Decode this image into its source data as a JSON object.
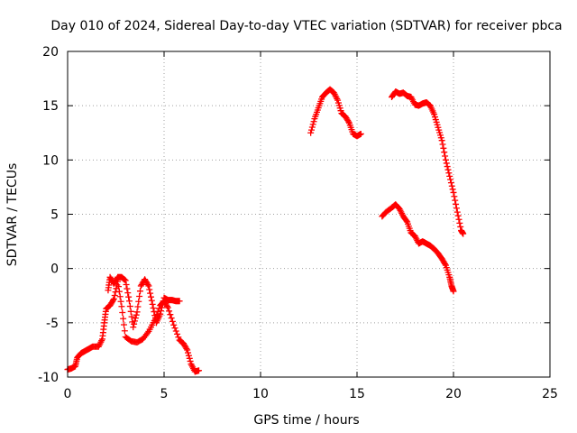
{
  "chart_data": {
    "type": "scatter",
    "title": "Day 010 of 2024, Sidereal Day-to-day VTEC variation (SDTVAR) for receiver pbca",
    "xlabel": "GPS time / hours",
    "ylabel": "SDTVAR / TECUs",
    "xlim": [
      0,
      25
    ],
    "ylim": [
      -10,
      20
    ],
    "xticks": [
      0,
      5,
      10,
      15,
      20,
      25
    ],
    "yticks": [
      -10,
      -5,
      0,
      5,
      10,
      15,
      20
    ],
    "grid": true,
    "marker": "+",
    "color": "#ff0000",
    "series": [
      {
        "name": "segment-1",
        "x": [
          0.0,
          0.2,
          0.4,
          0.5,
          0.7,
          0.9,
          1.1,
          1.3,
          1.6,
          1.8,
          1.9,
          2.0,
          2.2,
          2.4,
          2.6,
          2.8,
          3.0,
          3.3,
          3.6,
          3.9,
          4.2,
          4.5,
          4.8,
          5.0,
          5.2,
          5.5,
          5.8,
          6.0,
          6.2,
          6.4,
          6.6,
          6.8
        ],
        "y": [
          -9.3,
          -9.2,
          -9.0,
          -8.2,
          -7.8,
          -7.6,
          -7.4,
          -7.2,
          -7.2,
          -6.5,
          -5.0,
          -3.7,
          -3.4,
          -2.8,
          -1.2,
          -3.5,
          -6.3,
          -6.7,
          -6.8,
          -6.5,
          -5.8,
          -4.8,
          -3.4,
          -3.0,
          -3.6,
          -5.2,
          -6.6,
          -6.9,
          -7.5,
          -8.8,
          -9.5,
          -9.4
        ]
      },
      {
        "name": "segment-2",
        "x": [
          2.1,
          2.2,
          2.4,
          2.6,
          2.8,
          3.0,
          3.2,
          3.4,
          3.6,
          3.8,
          4.0,
          4.2,
          4.4,
          4.6,
          4.8,
          5.0,
          5.2,
          5.4,
          5.6,
          5.8
        ],
        "y": [
          -2.0,
          -0.8,
          -1.4,
          -0.8,
          -0.8,
          -1.1,
          -3.0,
          -5.4,
          -4.0,
          -1.6,
          -1.0,
          -1.6,
          -3.3,
          -5.0,
          -4.2,
          -2.7,
          -2.9,
          -2.9,
          -3.0,
          -3.0
        ]
      },
      {
        "name": "segment-3",
        "x": [
          12.6,
          12.8,
          13.0,
          13.2,
          13.4,
          13.6,
          13.8,
          14.0,
          14.2,
          14.4,
          14.6,
          14.8,
          15.0,
          15.2
        ],
        "y": [
          12.5,
          13.8,
          14.8,
          15.8,
          16.2,
          16.5,
          16.2,
          15.5,
          14.3,
          14.0,
          13.4,
          12.4,
          12.2,
          12.4
        ]
      },
      {
        "name": "segment-4",
        "x": [
          16.8,
          17.0,
          17.2,
          17.4,
          17.6,
          17.8,
          18.0,
          18.2,
          18.4,
          18.6,
          18.8,
          19.0,
          19.2,
          19.4,
          19.6,
          19.8,
          20.0,
          20.2,
          20.4,
          20.5
        ],
        "y": [
          15.8,
          16.3,
          16.1,
          16.2,
          15.9,
          15.8,
          15.1,
          15.0,
          15.2,
          15.3,
          15.0,
          14.2,
          13.0,
          11.8,
          10.0,
          8.5,
          7.0,
          5.2,
          3.5,
          3.2
        ]
      },
      {
        "name": "segment-5",
        "x": [
          16.3,
          16.5,
          16.8,
          17.0,
          17.2,
          17.4,
          17.6,
          17.8,
          18.0,
          18.2,
          18.4,
          18.6,
          18.8,
          19.0,
          19.2,
          19.4,
          19.6,
          19.8,
          19.9,
          20.0
        ],
        "y": [
          4.8,
          5.2,
          5.6,
          5.9,
          5.5,
          4.8,
          4.3,
          3.3,
          3.0,
          2.3,
          2.5,
          2.3,
          2.1,
          1.8,
          1.4,
          0.9,
          0.3,
          -0.8,
          -1.6,
          -2.1
        ]
      }
    ]
  }
}
